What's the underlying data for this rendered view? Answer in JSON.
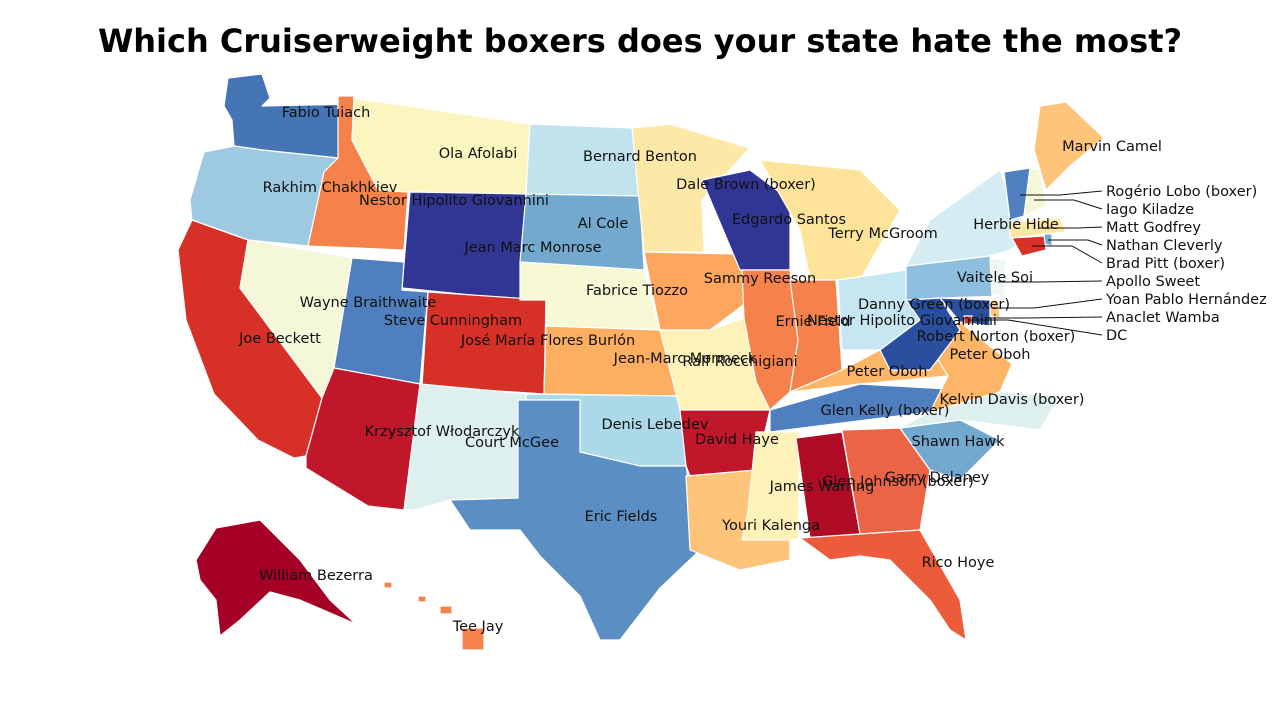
{
  "title": "Which Cruiserweight boxers does your state hate the most?",
  "states": [
    {
      "id": "WA",
      "boxer": "Fabio Tuiach",
      "color": "#4575b4"
    },
    {
      "id": "OR",
      "boxer": "Rakhim Chakhkiev",
      "color": "#9ecae1"
    },
    {
      "id": "ID",
      "boxer": "Nestor Hipolito Giovannini",
      "color": "#f4824a"
    },
    {
      "id": "MT",
      "boxer": "Ola Afolabi",
      "color": "#fbf6c0"
    },
    {
      "id": "WY",
      "boxer": "Jean Marc Monrose",
      "color": "#313695"
    },
    {
      "id": "CA",
      "boxer": "Joe Beckett",
      "color": "#d73027"
    },
    {
      "id": "NV",
      "boxer": "Wayne Braithwaite",
      "color": "#f4f8d8"
    },
    {
      "id": "UT",
      "boxer": "Steve Cunningham",
      "color": "#4f7fbf"
    },
    {
      "id": "AZ",
      "boxer": "Krzysztof Włodarczyk",
      "color": "#c0172a"
    },
    {
      "id": "CO",
      "boxer": "José María Flores Burlón",
      "color": "#d73027"
    },
    {
      "id": "NM",
      "boxer": "Court McGee",
      "color": "#def0ee"
    },
    {
      "id": "ND",
      "boxer": "Bernard Benton",
      "color": "#c0e3ee"
    },
    {
      "id": "SD",
      "boxer": "Al Cole",
      "color": "#74a9cf"
    },
    {
      "id": "NE",
      "boxer": "Fabrice Tiozzo",
      "color": "#f6f9d4"
    },
    {
      "id": "KS",
      "boxer": "Jean-Marc Mormeck",
      "color": "#fdae61"
    },
    {
      "id": "OK",
      "boxer": "Denis Lebedev",
      "color": "#abd9e9"
    },
    {
      "id": "TX",
      "boxer": "Eric Fields",
      "color": "#5b8fc4"
    },
    {
      "id": "MN",
      "boxer": "Dale Brown (boxer)",
      "color": "#fee8a8"
    },
    {
      "id": "IA",
      "boxer": "Sammy Reeson",
      "color": "#fca65e"
    },
    {
      "id": "MO",
      "boxer": "Ralf Rocchigiani",
      "color": "#fff2b8"
    },
    {
      "id": "AR",
      "boxer": "David Haye",
      "color": "#c0172a"
    },
    {
      "id": "LA",
      "boxer": "Youri Kalenga",
      "color": "#fdc47a"
    },
    {
      "id": "WI",
      "boxer": "Edgardo Santos",
      "color": "#313695"
    },
    {
      "id": "IL",
      "boxer": "Ernie Field",
      "color": "#f4824a"
    },
    {
      "id": "MI",
      "boxer": "Terry McGroom",
      "color": "#fee49a"
    },
    {
      "id": "IN",
      "boxer": "Nestor Hipolito Giovannini",
      "color": "#f4824a"
    },
    {
      "id": "OH",
      "boxer": "Danny Green (boxer)",
      "color": "#c6e6f1"
    },
    {
      "id": "KY",
      "boxer": "Peter Oboh",
      "color": "#fdb567"
    },
    {
      "id": "TN",
      "boxer": "Glen Kelly (boxer)",
      "color": "#4f7fbf"
    },
    {
      "id": "MS",
      "boxer": "James Warring",
      "color": "#fff2b8"
    },
    {
      "id": "AL",
      "boxer": "Glen Johnson (boxer)",
      "color": "#b10c26"
    },
    {
      "id": "GA",
      "boxer": "Garry Delaney",
      "color": "#ec6446"
    },
    {
      "id": "FL",
      "boxer": "Rico Hoye",
      "color": "#ec5b3a"
    },
    {
      "id": "SC",
      "boxer": "Shawn Hawk",
      "color": "#74a9cf"
    },
    {
      "id": "NC",
      "boxer": "Kelvin Davis (boxer)",
      "color": "#def0ee"
    },
    {
      "id": "VA",
      "boxer": "Peter Oboh",
      "color": "#fdb567"
    },
    {
      "id": "WV",
      "boxer": "Robert Norton (boxer)",
      "color": "#2a4f9f"
    },
    {
      "id": "PA",
      "boxer": "Vaitele Soi",
      "color": "#8fbfdf"
    },
    {
      "id": "NY",
      "boxer": "Herbie Hide",
      "color": "#d5ecf2"
    },
    {
      "id": "ME",
      "boxer": "Marvin Camel",
      "color": "#fdc47a"
    },
    {
      "id": "VT",
      "boxer": "Rogério Lobo (boxer)",
      "color": "#4f7fbf"
    },
    {
      "id": "NH",
      "boxer": "Iago Kiladze",
      "color": "#f4f8d8"
    },
    {
      "id": "MA",
      "boxer": "Matt Godfrey",
      "color": "#fee8a8"
    },
    {
      "id": "RI",
      "boxer": "Nathan Cleverly",
      "color": "#74a9cf"
    },
    {
      "id": "CT",
      "boxer": "Brad Pitt (boxer)",
      "color": "#d73027"
    },
    {
      "id": "NJ",
      "boxer": "Apollo Sweet",
      "color": "#eef7f4"
    },
    {
      "id": "DE",
      "boxer": "Yoan Pablo Hernández",
      "color": "#fdc47a"
    },
    {
      "id": "MD",
      "boxer": "Anaclet Wamba",
      "color": "#2a4f9f"
    },
    {
      "id": "DC",
      "boxer": "DC",
      "color": "#d73027"
    },
    {
      "id": "AK",
      "boxer": "William Bezerra",
      "color": "#a50026"
    },
    {
      "id": "HI",
      "boxer": "Tee Jay",
      "color": "#f4824a"
    }
  ],
  "callouts": [
    "Rogério Lobo (boxer)",
    "Iago Kiladze",
    "Matt Godfrey",
    "Nathan Cleverly",
    "Brad Pitt (boxer)",
    "Apollo Sweet",
    "Yoan Pablo Hernández",
    "Anaclet Wamba",
    "DC"
  ]
}
